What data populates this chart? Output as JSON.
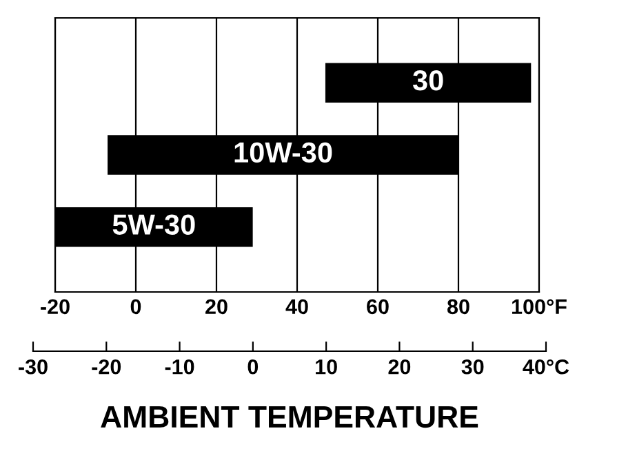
{
  "chart_data": {
    "type": "bar",
    "orientation": "horizontal",
    "xlabel": "AMBIENT TEMPERATURE",
    "categories": [
      "30",
      "10W-30",
      "5W-30"
    ],
    "base": [
      47,
      -7,
      -20
    ],
    "values": [
      51,
      87,
      49
    ],
    "color": "#000000",
    "xlim": [
      -20,
      100
    ],
    "xticks": [
      -20,
      0,
      20,
      40,
      60,
      80,
      {
        "value": 100,
        "label": "100°F"
      }
    ],
    "x2lim": [
      -30,
      40
    ],
    "x2ticks": [
      -30,
      -20,
      -10,
      0,
      10,
      20,
      30,
      {
        "value": 40,
        "label": "40°C"
      }
    ],
    "grid": "x",
    "tick_labels": "x",
    "legend": false
  }
}
